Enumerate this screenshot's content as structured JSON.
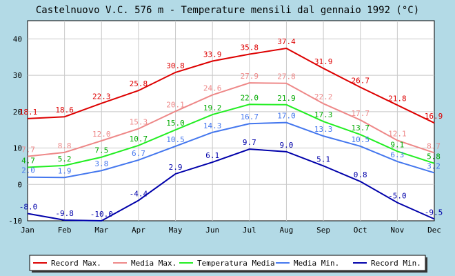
{
  "chart_data": {
    "type": "line",
    "title": "Castelnuovo V.C. 576 m - Temperature mensili dal gennaio 1992 (°C)",
    "categories": [
      "Jan",
      "Feb",
      "Mar",
      "Apr",
      "May",
      "Jun",
      "Jul",
      "Aug",
      "Sep",
      "Oct",
      "Nov",
      "Dec"
    ],
    "ylim": [
      -10,
      45
    ],
    "yticks": [
      -10,
      0,
      10,
      20,
      30,
      40
    ],
    "grid": true,
    "legend_position": "bottom",
    "series": [
      {
        "name": "Record Max.",
        "color": "#dd0000",
        "values": [
          18.1,
          18.6,
          22.3,
          25.8,
          30.8,
          33.9,
          35.8,
          37.4,
          31.9,
          26.7,
          21.8,
          16.9
        ],
        "labels": [
          "18.1",
          "18.6",
          "22.3",
          "25.8",
          "30.8",
          "33.9",
          "35.8",
          "37.4",
          "31.9",
          "26.7",
          "21.8",
          "16.9"
        ]
      },
      {
        "name": "Media Max.",
        "color": "#ee8888",
        "values": [
          7.7,
          8.8,
          12.0,
          15.3,
          20.1,
          24.6,
          27.9,
          27.8,
          22.2,
          17.7,
          12.1,
          8.7
        ],
        "labels": [
          "7.7",
          "8.8",
          "12.0",
          "15.3",
          "20.1",
          "24.6",
          "27.9",
          "27.8",
          "22.2",
          "17.7",
          "12.1",
          "8.7"
        ]
      },
      {
        "name": "Temperatura Media",
        "color": "#22ee22",
        "values": [
          4.7,
          5.2,
          7.5,
          10.7,
          15.0,
          19.2,
          22.0,
          21.9,
          17.3,
          13.7,
          9.1,
          5.8
        ],
        "labels": [
          "4.7",
          "5.2",
          "7.5",
          "10.7",
          "15.0",
          "19.2",
          "22.0",
          "21.9",
          "17.3",
          "13.7",
          "9.1",
          "5.8"
        ],
        "label_color": "#00aa00"
      },
      {
        "name": "Media Min.",
        "color": "#4477ee",
        "values": [
          2.0,
          1.9,
          3.8,
          6.7,
          10.5,
          14.3,
          16.7,
          17.0,
          13.3,
          10.5,
          6.3,
          3.2
        ],
        "labels": [
          "2.0",
          "1.9",
          "3.8",
          "6.7",
          "10.5",
          "14.3",
          "16.7",
          "17.0",
          "13.3",
          "10.5",
          "6.3",
          "3.2"
        ]
      },
      {
        "name": "Record Min.",
        "color": "#0000aa",
        "values": [
          -8.0,
          -9.8,
          -10.0,
          -4.4,
          2.9,
          6.1,
          9.7,
          9.0,
          5.1,
          0.8,
          -5.0,
          -9.5
        ],
        "labels": [
          "-8.0",
          "-9.8",
          "-10.0",
          "-4.4",
          "2.9",
          "6.1",
          "9.7",
          "9.0",
          "5.1",
          "0.8",
          "-5.0",
          "-9.5"
        ]
      }
    ]
  }
}
